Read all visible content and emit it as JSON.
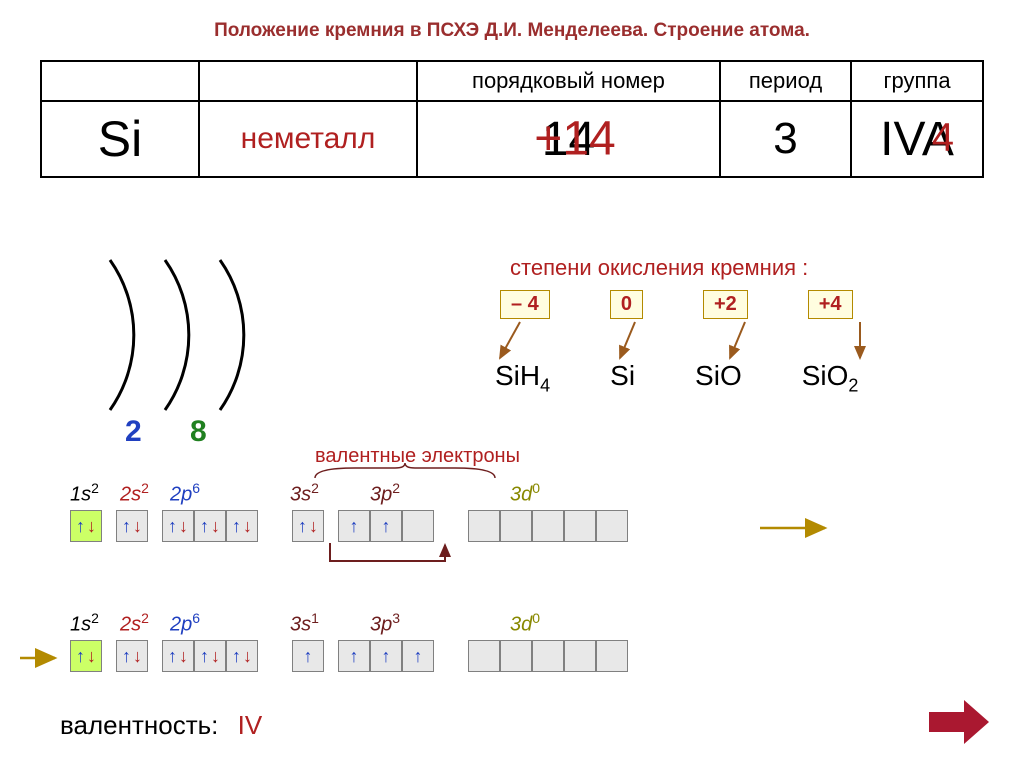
{
  "title": "Положение кремния в ПСХЭ Д.И. Менделеева. Строение атома.",
  "table": {
    "headers": [
      "",
      "",
      "порядковый номер",
      "период",
      "группа"
    ],
    "symbol": "Si",
    "type": "неметалл",
    "atomic_black": "14",
    "atomic_red": "+14",
    "period": "3",
    "group_black": "IVA",
    "group_red": "4"
  },
  "oxidation": {
    "label": "степени окисления кремния :",
    "states": [
      "– 4",
      "0",
      "+2",
      "+4"
    ],
    "compounds": [
      "SiH4",
      "Si",
      "SiO",
      "SiO2"
    ]
  },
  "shells": {
    "n1": "2",
    "n2": "8"
  },
  "valence_electrons_label": "валентные электроны",
  "config_row1": {
    "labels": [
      {
        "txt": "1s",
        "sup": "2",
        "cls": "c-black",
        "w": "orb-lbl-1s"
      },
      {
        "txt": "2s",
        "sup": "2",
        "cls": "c-red",
        "w": "orb-lbl-2s"
      },
      {
        "txt": "2p",
        "sup": "6",
        "cls": "c-blue",
        "w": "orb-lbl-2p"
      },
      {
        "txt": "3s",
        "sup": "2",
        "cls": "c-darkred",
        "w": "orb-lbl-3s"
      },
      {
        "txt": "3p",
        "sup": "2",
        "cls": "c-darkred",
        "w": "orb-lbl-3p"
      },
      {
        "txt": "3d",
        "sup": "0",
        "cls": "c-olive",
        "w": "orb-lbl-3d"
      }
    ]
  },
  "config_row2": {
    "labels": [
      {
        "txt": "1s",
        "sup": "2",
        "cls": "c-black",
        "w": "orb-lbl-1s"
      },
      {
        "txt": "2s",
        "sup": "2",
        "cls": "c-red",
        "w": "orb-lbl-2s"
      },
      {
        "txt": "2p",
        "sup": "6",
        "cls": "c-blue",
        "w": "orb-lbl-2p"
      },
      {
        "txt": "3s",
        "sup": "1",
        "cls": "c-darkred",
        "w": "orb-lbl-3s"
      },
      {
        "txt": "3p",
        "sup": "3",
        "cls": "c-darkred",
        "w": "orb-lbl-3p"
      },
      {
        "txt": "3d",
        "sup": "0",
        "cls": "c-olive",
        "w": "orb-lbl-3d"
      }
    ]
  },
  "valence": {
    "label": "валентность:",
    "value": "IV"
  },
  "colors": {
    "title": "#9a2e2e",
    "red": "#b02020",
    "blue": "#2040c0",
    "green": "#208020",
    "olive": "#888800",
    "box_border": "#b38a00",
    "box_bg": "#fffde0",
    "lime": "#ccff66",
    "grey": "#e8e8e8",
    "arrow_brown": "#9a5a1e",
    "big_arrow": "#aa1830"
  }
}
